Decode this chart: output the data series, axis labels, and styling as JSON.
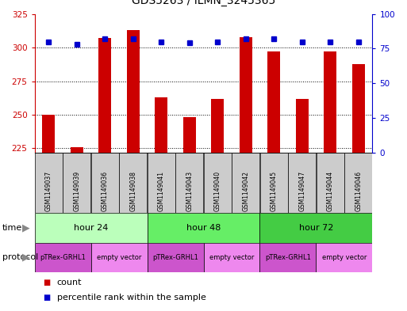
{
  "title": "GDS5263 / ILMN_3245365",
  "samples": [
    "GSM1149037",
    "GSM1149039",
    "GSM1149036",
    "GSM1149038",
    "GSM1149041",
    "GSM1149043",
    "GSM1149040",
    "GSM1149042",
    "GSM1149045",
    "GSM1149047",
    "GSM1149044",
    "GSM1149046"
  ],
  "counts": [
    250,
    226,
    307,
    313,
    263,
    248,
    262,
    308,
    297,
    262,
    297,
    288
  ],
  "percentiles": [
    80,
    78,
    82,
    82,
    80,
    79,
    80,
    82,
    82,
    80,
    80,
    80
  ],
  "ylim_left": [
    222,
    325
  ],
  "ylim_right": [
    0,
    100
  ],
  "yticks_left": [
    225,
    250,
    275,
    300,
    325
  ],
  "yticks_right": [
    0,
    25,
    50,
    75,
    100
  ],
  "time_groups": [
    {
      "label": "hour 24",
      "start": 0,
      "end": 4,
      "color": "#bbffbb"
    },
    {
      "label": "hour 48",
      "start": 4,
      "end": 8,
      "color": "#66ee66"
    },
    {
      "label": "hour 72",
      "start": 8,
      "end": 12,
      "color": "#44cc44"
    }
  ],
  "protocol_groups": [
    {
      "label": "pTRex-GRHL1",
      "start": 0,
      "end": 2,
      "color": "#cc55cc"
    },
    {
      "label": "empty vector",
      "start": 2,
      "end": 4,
      "color": "#ee88ee"
    },
    {
      "label": "pTRex-GRHL1",
      "start": 4,
      "end": 6,
      "color": "#cc55cc"
    },
    {
      "label": "empty vector",
      "start": 6,
      "end": 8,
      "color": "#ee88ee"
    },
    {
      "label": "pTRex-GRHL1",
      "start": 8,
      "end": 10,
      "color": "#cc55cc"
    },
    {
      "label": "empty vector",
      "start": 10,
      "end": 12,
      "color": "#ee88ee"
    }
  ],
  "bar_color": "#cc0000",
  "dot_color": "#0000cc",
  "bar_bottom": 222,
  "background_color": "#ffffff",
  "sample_box_color": "#cccccc",
  "left_axis_color": "#cc0000",
  "right_axis_color": "#0000cc",
  "fig_width": 5.13,
  "fig_height": 3.93,
  "dpi": 100
}
